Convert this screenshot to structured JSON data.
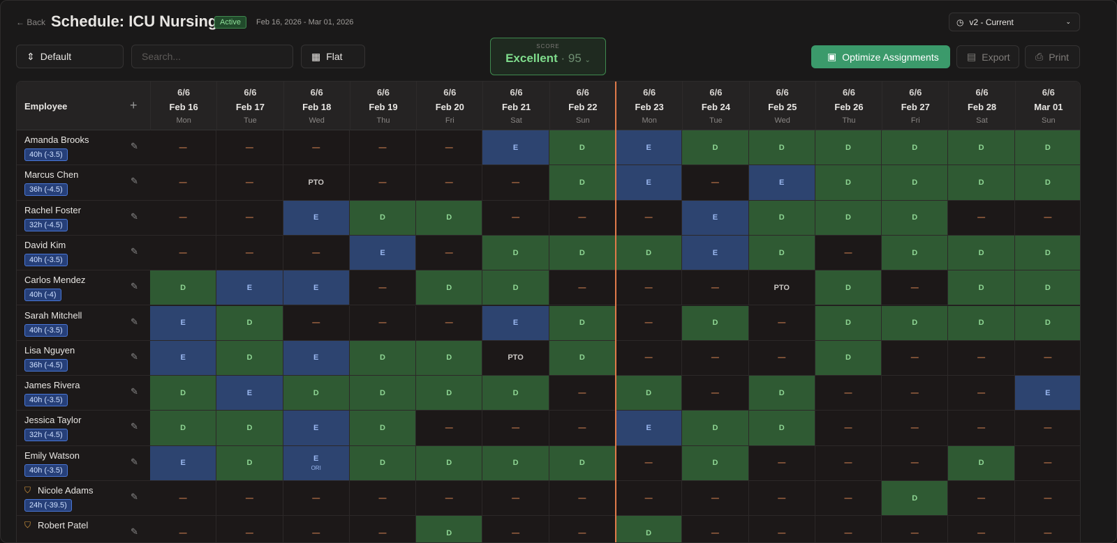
{
  "header": {
    "back": "Back",
    "title": "Schedule: ICU Nursing",
    "status": "Active",
    "date_range": "Feb 16, 2026 - Mar 01, 2026",
    "version": "v2 - Current"
  },
  "toolbar": {
    "view": "Default",
    "search_placeholder": "Search...",
    "layout": "Flat",
    "score_label": "SCORE",
    "score_rating": "Excellent",
    "score_separator": "·",
    "score_value": 95,
    "optimize": "Optimize Assignments",
    "export": "Export",
    "print": "Print"
  },
  "grid": {
    "employee_header": "Employee",
    "columns": [
      {
        "coverage": "6/6",
        "date": "Feb 16",
        "day": "Mon"
      },
      {
        "coverage": "6/6",
        "date": "Feb 17",
        "day": "Tue"
      },
      {
        "coverage": "6/6",
        "date": "Feb 18",
        "day": "Wed"
      },
      {
        "coverage": "6/6",
        "date": "Feb 19",
        "day": "Thu"
      },
      {
        "coverage": "6/6",
        "date": "Feb 20",
        "day": "Fri"
      },
      {
        "coverage": "6/6",
        "date": "Feb 21",
        "day": "Sat"
      },
      {
        "coverage": "6/6",
        "date": "Feb 22",
        "day": "Sun"
      },
      {
        "coverage": "6/6",
        "date": "Feb 23",
        "day": "Mon"
      },
      {
        "coverage": "6/6",
        "date": "Feb 24",
        "day": "Tue"
      },
      {
        "coverage": "6/6",
        "date": "Feb 25",
        "day": "Wed"
      },
      {
        "coverage": "6/6",
        "date": "Feb 26",
        "day": "Thu"
      },
      {
        "coverage": "6/6",
        "date": "Feb 27",
        "day": "Fri"
      },
      {
        "coverage": "6/6",
        "date": "Feb 28",
        "day": "Sat"
      },
      {
        "coverage": "6/6",
        "date": "Mar 01",
        "day": "Sun"
      }
    ],
    "rows": [
      {
        "name": "Amanda Brooks",
        "hours": "40h (-3.5)",
        "cells": [
          "—",
          "—",
          "—",
          "—",
          "—",
          "E",
          "D",
          "E",
          "D",
          "D",
          "D",
          "D",
          "D",
          "D"
        ]
      },
      {
        "name": "Marcus Chen",
        "hours": "36h (-4.5)",
        "cells": [
          "—",
          "—",
          "PTO",
          "—",
          "—",
          "—",
          "D",
          "E",
          "—",
          "E",
          "D",
          "D",
          "D",
          "D"
        ]
      },
      {
        "name": "Rachel Foster",
        "hours": "32h (-4.5)",
        "cells": [
          "—",
          "—",
          "E",
          "D",
          "D",
          "—",
          "—",
          "—",
          "E",
          "D",
          "D",
          "D",
          "—",
          "—"
        ]
      },
      {
        "name": "David Kim",
        "hours": "40h (-3.5)",
        "cells": [
          "—",
          "—",
          "—",
          "E",
          "—",
          "D",
          "D",
          "D",
          "E",
          "D",
          "—",
          "D",
          "D",
          "D"
        ]
      },
      {
        "name": "Carlos Mendez",
        "hours": "40h (-4)",
        "cells": [
          "D",
          "E",
          "E",
          "—",
          "D",
          "D",
          "—",
          "—",
          "—",
          "PTO",
          "D",
          "—",
          "D",
          "D"
        ]
      },
      {
        "name": "Sarah Mitchell",
        "hours": "40h (-3.5)",
        "cells": [
          "E",
          "D",
          "—",
          "—",
          "—",
          "E",
          "D",
          "—",
          "D",
          "—",
          "D",
          "D",
          "D",
          "D"
        ]
      },
      {
        "name": "Lisa Nguyen",
        "hours": "36h (-4.5)",
        "cells": [
          "E",
          "D",
          "E",
          "D",
          "D",
          "PTO",
          "D",
          "—",
          "—",
          "—",
          "D",
          "—",
          "—",
          "—"
        ]
      },
      {
        "name": "James Rivera",
        "hours": "40h (-3.5)",
        "cells": [
          "D",
          "E",
          "D",
          "D",
          "D",
          "D",
          "—",
          "D",
          "—",
          "D",
          "—",
          "—",
          "—",
          "E"
        ]
      },
      {
        "name": "Jessica Taylor",
        "hours": "32h (-4.5)",
        "cells": [
          "D",
          "D",
          "E",
          "D",
          "—",
          "—",
          "—",
          "E",
          "D",
          "D",
          "—",
          "—",
          "—",
          "—"
        ]
      },
      {
        "name": "Emily Watson",
        "hours": "40h (-3.5)",
        "cells": [
          "E",
          "D",
          {
            "shift": "E",
            "note": "ORI"
          },
          "D",
          "D",
          "D",
          "D",
          "—",
          "D",
          "—",
          "—",
          "—",
          "D",
          "—"
        ]
      },
      {
        "name": "Nicole Adams",
        "hours": "24h (-39.5)",
        "flagged": true,
        "cells": [
          "—",
          "—",
          "—",
          "—",
          "—",
          "—",
          "—",
          "—",
          "—",
          "—",
          "—",
          "D",
          "—",
          "—"
        ]
      },
      {
        "name": "Robert Patel",
        "flagged": true,
        "cells": [
          "—",
          "—",
          "—",
          "—",
          "D",
          "—",
          "—",
          "D",
          "—",
          "—",
          "—",
          "—",
          "—",
          "—"
        ]
      }
    ]
  }
}
